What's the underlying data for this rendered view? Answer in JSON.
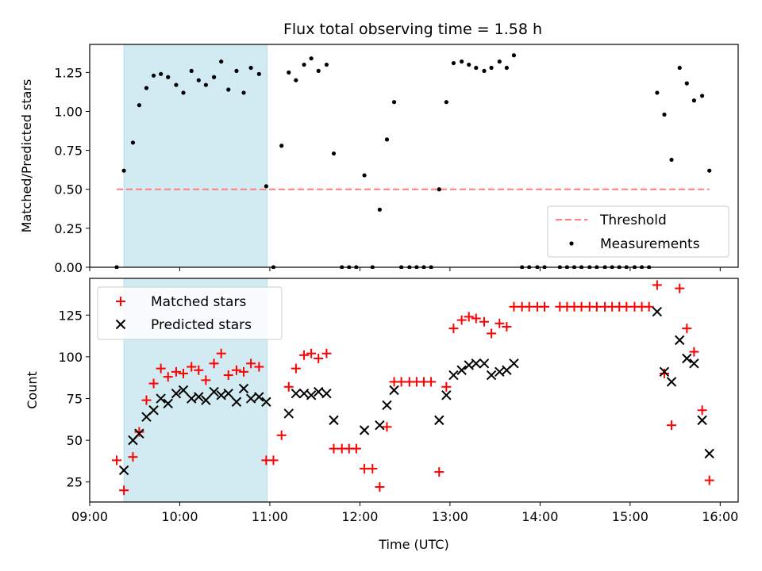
{
  "title": "Flux total observing time = 1.58 h",
  "colors": {
    "highlight": "#add8e6",
    "threshold": "#ff7f7f",
    "matched": "#ff0000",
    "predicted": "#000000",
    "measurements": "#000000"
  },
  "chart_data": [
    {
      "type": "scatter",
      "ylabel": "Matched/Predicted stars",
      "ylim": [
        0,
        1.43
      ],
      "xlim": [
        9.0,
        16.2
      ],
      "x_unit": "hours UTC",
      "yticks": [
        0,
        0.25,
        0.5,
        0.75,
        1.0,
        1.25
      ],
      "ytick_labels": [
        "0.00",
        "0.25",
        "0.50",
        "0.75",
        "1.00",
        "1.25"
      ],
      "highlight_span": [
        9.38,
        10.97
      ],
      "threshold": {
        "label": "Threshold",
        "value": 0.5,
        "x_range": [
          9.3,
          15.88
        ]
      },
      "legend": {
        "placement": "lower right",
        "entries": [
          "Threshold",
          "Measurements"
        ]
      },
      "series": [
        {
          "name": "Measurements",
          "x": [
            9.3,
            9.38,
            9.48,
            9.55,
            9.63,
            9.71,
            9.79,
            9.87,
            9.96,
            10.04,
            10.13,
            10.21,
            10.29,
            10.38,
            10.46,
            10.54,
            10.63,
            10.71,
            10.79,
            10.88,
            10.96,
            11.04,
            11.13,
            11.21,
            11.29,
            11.38,
            11.46,
            11.54,
            11.63,
            11.71,
            11.8,
            11.88,
            11.96,
            12.05,
            12.14,
            12.22,
            12.3,
            12.38,
            12.46,
            12.55,
            12.63,
            12.71,
            12.79,
            12.88,
            12.96,
            13.04,
            13.13,
            13.21,
            13.29,
            13.38,
            13.46,
            13.55,
            13.63,
            13.71,
            13.8,
            13.88,
            13.97,
            14.05,
            14.22,
            14.3,
            14.38,
            14.46,
            14.55,
            14.63,
            14.72,
            14.8,
            14.88,
            14.96,
            15.05,
            15.13,
            15.21,
            15.3,
            15.38,
            15.46,
            15.55,
            15.63,
            15.71,
            15.8,
            15.88
          ],
          "y": [
            0.0,
            0.62,
            0.8,
            1.04,
            1.15,
            1.23,
            1.24,
            1.22,
            1.17,
            1.12,
            1.26,
            1.2,
            1.17,
            1.22,
            1.32,
            1.14,
            1.26,
            1.12,
            1.28,
            1.24,
            0.52,
            0.0,
            0.78,
            1.25,
            1.2,
            1.3,
            1.34,
            1.26,
            1.3,
            0.73,
            0.0,
            0.0,
            0.0,
            0.59,
            0.0,
            0.37,
            0.82,
            1.06,
            0.0,
            0.0,
            0.0,
            0.0,
            0.0,
            0.5,
            1.06,
            1.31,
            1.32,
            1.3,
            1.28,
            1.26,
            1.28,
            1.32,
            1.28,
            1.36,
            0.0,
            0.0,
            0.0,
            0.0,
            0.0,
            0.0,
            0.0,
            0.0,
            0.0,
            0.0,
            0.0,
            0.0,
            0.0,
            0.0,
            0.0,
            0.0,
            0.0,
            1.12,
            0.98,
            0.69,
            1.28,
            1.18,
            1.07,
            1.1,
            0.62
          ]
        }
      ]
    },
    {
      "type": "scatter",
      "xlabel": "Time (UTC)",
      "ylabel": "Count",
      "ylim": [
        13,
        147
      ],
      "xlim": [
        9.0,
        16.2
      ],
      "x_unit": "hours UTC",
      "xticks": [
        9,
        10,
        11,
        12,
        13,
        14,
        15,
        16
      ],
      "xtick_labels": [
        "09:00",
        "10:00",
        "11:00",
        "12:00",
        "13:00",
        "14:00",
        "15:00",
        "16:00"
      ],
      "yticks": [
        25,
        50,
        75,
        100,
        125
      ],
      "ytick_labels": [
        "25",
        "50",
        "75",
        "100",
        "125"
      ],
      "highlight_span": [
        9.38,
        10.97
      ],
      "legend": {
        "placement": "upper left",
        "entries": [
          "Matched stars",
          "Predicted stars"
        ]
      },
      "series": [
        {
          "name": "Matched stars",
          "marker": "+",
          "x": [
            9.3,
            9.38,
            9.48,
            9.55,
            9.63,
            9.71,
            9.79,
            9.87,
            9.96,
            10.04,
            10.13,
            10.21,
            10.29,
            10.38,
            10.46,
            10.54,
            10.63,
            10.71,
            10.79,
            10.88,
            10.96,
            11.04,
            11.13,
            11.21,
            11.29,
            11.38,
            11.46,
            11.54,
            11.63,
            11.71,
            11.8,
            11.88,
            11.96,
            12.05,
            12.14,
            12.22,
            12.3,
            12.38,
            12.46,
            12.55,
            12.63,
            12.71,
            12.79,
            12.88,
            12.96,
            13.04,
            13.13,
            13.21,
            13.29,
            13.38,
            13.46,
            13.55,
            13.63,
            13.71,
            13.8,
            13.88,
            13.97,
            14.05,
            14.22,
            14.3,
            14.38,
            14.46,
            14.55,
            14.63,
            14.72,
            14.8,
            14.88,
            14.96,
            15.05,
            15.13,
            15.21,
            15.3,
            15.38,
            15.46,
            15.55,
            15.63,
            15.71,
            15.8,
            15.88
          ],
          "y": [
            38,
            20,
            40,
            55,
            74,
            84,
            93,
            88,
            91,
            90,
            94,
            92,
            86,
            96,
            102,
            89,
            92,
            91,
            96,
            94,
            38,
            38,
            53,
            82,
            93,
            101,
            102,
            99,
            102,
            45,
            45,
            45,
            45,
            33,
            33,
            22,
            58,
            85,
            85,
            85,
            85,
            85,
            85,
            31,
            82,
            117,
            122,
            124,
            123,
            121,
            114,
            120,
            118,
            130,
            130,
            130,
            130,
            130,
            130,
            130,
            130,
            130,
            130,
            130,
            130,
            130,
            130,
            130,
            130,
            130,
            130,
            143,
            90,
            59,
            141,
            117,
            103,
            68,
            26
          ]
        },
        {
          "name": "Predicted stars",
          "marker": "x",
          "x": [
            9.38,
            9.48,
            9.55,
            9.63,
            9.71,
            9.79,
            9.87,
            9.96,
            10.04,
            10.13,
            10.21,
            10.29,
            10.38,
            10.46,
            10.54,
            10.63,
            10.71,
            10.79,
            10.88,
            10.96,
            11.21,
            11.29,
            11.38,
            11.46,
            11.54,
            11.63,
            11.71,
            12.05,
            12.22,
            12.3,
            12.38,
            12.88,
            12.96,
            13.04,
            13.13,
            13.21,
            13.29,
            13.38,
            13.46,
            13.55,
            13.63,
            13.71,
            15.3,
            15.38,
            15.46,
            15.55,
            15.63,
            15.71,
            15.8,
            15.88
          ],
          "y": [
            32,
            50,
            54,
            64,
            68,
            75,
            72,
            78,
            80,
            75,
            76,
            74,
            79,
            77,
            78,
            73,
            81,
            75,
            76,
            73,
            66,
            78,
            78,
            77,
            79,
            78,
            62,
            56,
            59,
            71,
            80,
            62,
            77,
            89,
            92,
            95,
            96,
            96,
            89,
            91,
            92,
            96,
            127,
            91,
            85,
            110,
            99,
            96,
            62,
            42
          ]
        }
      ]
    }
  ]
}
